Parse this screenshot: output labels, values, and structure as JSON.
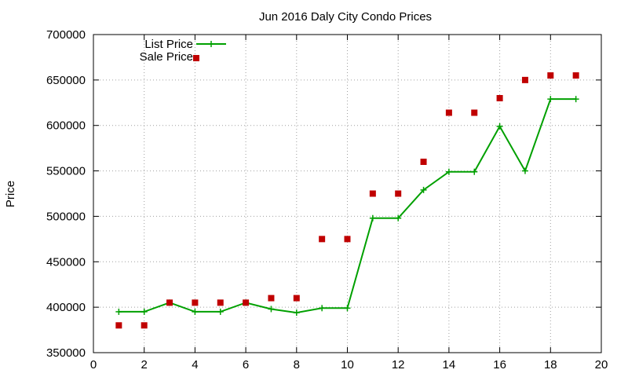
{
  "chart_data": {
    "type": "line",
    "title": "Jun 2016 Daly City Condo Prices",
    "xlabel": "",
    "ylabel": "Price",
    "xlim": [
      0,
      20
    ],
    "ylim": [
      350000,
      700000
    ],
    "xticks": [
      0,
      2,
      4,
      6,
      8,
      10,
      12,
      14,
      16,
      18,
      20
    ],
    "yticks": [
      350000,
      400000,
      450000,
      500000,
      550000,
      600000,
      650000,
      700000
    ],
    "grid": true,
    "legend_position": "top-left",
    "series": [
      {
        "name": "List Price",
        "style": "line-with-plus-markers",
        "color": "#00a000",
        "x": [
          1,
          2,
          3,
          4,
          5,
          6,
          7,
          8,
          9,
          10,
          11,
          12,
          13,
          14,
          15,
          16,
          17,
          18,
          19
        ],
        "values": [
          395000,
          395000,
          405000,
          395000,
          395000,
          405000,
          398000,
          394000,
          399000,
          399000,
          498000,
          498000,
          529000,
          549000,
          549000,
          599000,
          550000,
          629000,
          629000
        ]
      },
      {
        "name": "Sale Price",
        "style": "square-markers",
        "color": "#c00000",
        "x": [
          1,
          2,
          3,
          4,
          5,
          6,
          7,
          8,
          9,
          10,
          11,
          12,
          13,
          14,
          15,
          16,
          17,
          18,
          19
        ],
        "values": [
          380000,
          380000,
          405000,
          405000,
          405000,
          405000,
          410000,
          410000,
          475000,
          475000,
          525000,
          525000,
          560000,
          614000,
          614000,
          630000,
          650000,
          655000,
          655000
        ]
      }
    ]
  }
}
